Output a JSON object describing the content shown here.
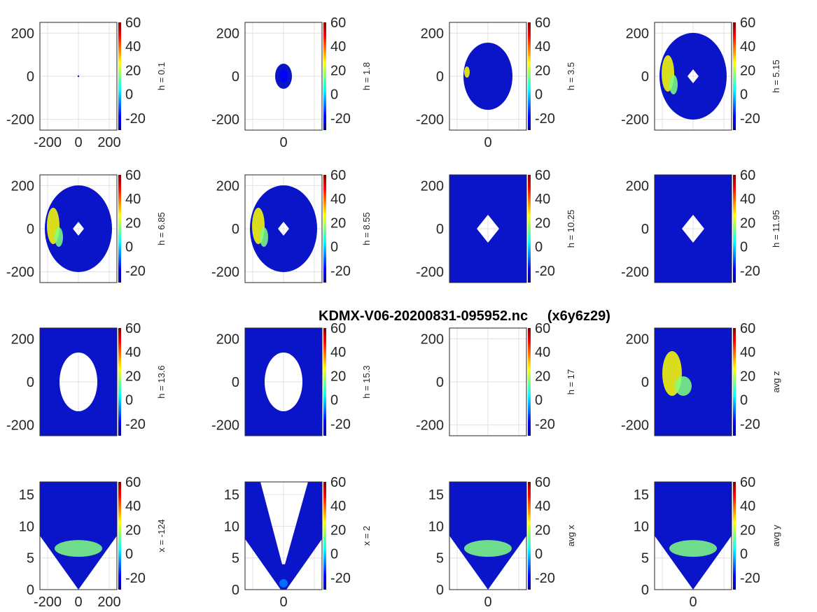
{
  "figure": {
    "title": "KDMX-V06-20200831-095952.nc     (x6y6z29)"
  },
  "colormap": {
    "name": "jet",
    "range": [
      -30,
      60
    ],
    "ticks": [
      "60",
      "40",
      "20",
      "0",
      "-20"
    ],
    "tick_values": [
      60,
      40,
      20,
      0,
      -20
    ],
    "stops": [
      "#00008f",
      "#0000ff",
      "#0080ff",
      "#00ffff",
      "#80ff80",
      "#ffff00",
      "#ff8000",
      "#ff0000",
      "#800000"
    ]
  },
  "chart_data": [
    {
      "type": "heatmap",
      "panel": "h-0.1",
      "label": "h = 0.1",
      "xlim": [
        -250,
        250
      ],
      "ylim": [
        -250,
        250
      ],
      "xticks": [
        "-200",
        "0",
        "200"
      ],
      "yticks": [
        "200",
        "0",
        "-200"
      ],
      "grid": true,
      "shape": "dot",
      "color_scale": [
        -30,
        60
      ]
    },
    {
      "type": "heatmap",
      "panel": "h-1.8",
      "label": "h = 1.8",
      "xlim": [
        -250,
        250
      ],
      "ylim": [
        -250,
        250
      ],
      "xticks": [
        "0"
      ],
      "yticks": [
        "200",
        "0",
        "-200"
      ],
      "grid": true,
      "shape": "small-ellipse",
      "color_scale": [
        -30,
        60
      ]
    },
    {
      "type": "heatmap",
      "panel": "h-3.5",
      "label": "h = 3.5",
      "xlim": [
        -250,
        250
      ],
      "ylim": [
        -250,
        250
      ],
      "xticks": [
        "0"
      ],
      "yticks": [
        "200",
        "0",
        "-200"
      ],
      "grid": true,
      "shape": "ellipse",
      "color_scale": [
        -30,
        60
      ]
    },
    {
      "type": "heatmap",
      "panel": "h-5.15",
      "label": "h = 5.15",
      "xlim": [
        -250,
        250
      ],
      "ylim": [
        -250,
        250
      ],
      "xticks": [],
      "yticks": [
        "200",
        "0",
        "-200"
      ],
      "grid": true,
      "shape": "ellipse-hole",
      "color_scale": [
        -30,
        60
      ]
    },
    {
      "type": "heatmap",
      "panel": "h-6.85",
      "label": "h = 6.85",
      "xlim": [
        -250,
        250
      ],
      "ylim": [
        -250,
        250
      ],
      "xticks": [],
      "yticks": [
        "200",
        "0",
        "-200"
      ],
      "grid": true,
      "shape": "ellipse-hole",
      "color_scale": [
        -30,
        60
      ]
    },
    {
      "type": "heatmap",
      "panel": "h-8.55",
      "label": "h = 8.55",
      "xlim": [
        -250,
        250
      ],
      "ylim": [
        -250,
        250
      ],
      "xticks": [],
      "yticks": [
        "200",
        "0",
        "-200"
      ],
      "grid": true,
      "shape": "ellipse-hole",
      "color_scale": [
        -30,
        60
      ]
    },
    {
      "type": "heatmap",
      "panel": "h-10.25",
      "label": "h = 10.25",
      "xlim": [
        -250,
        250
      ],
      "ylim": [
        -250,
        250
      ],
      "xticks": [],
      "yticks": [
        "200",
        "0",
        "-200"
      ],
      "grid": true,
      "shape": "fill-hole",
      "color_scale": [
        -30,
        60
      ]
    },
    {
      "type": "heatmap",
      "panel": "h-11.95",
      "label": "h = 11.95",
      "xlim": [
        -250,
        250
      ],
      "ylim": [
        -250,
        250
      ],
      "xticks": [],
      "yticks": [
        "200",
        "0",
        "-200"
      ],
      "grid": true,
      "shape": "fill-hole",
      "color_scale": [
        -30,
        60
      ]
    },
    {
      "type": "heatmap",
      "panel": "h-13.6",
      "label": "h = 13.6",
      "xlim": [
        -250,
        250
      ],
      "ylim": [
        -250,
        250
      ],
      "xticks": [],
      "yticks": [
        "200",
        "0",
        "-200"
      ],
      "grid": true,
      "shape": "fill-big-hole",
      "color_scale": [
        -30,
        60
      ]
    },
    {
      "type": "heatmap",
      "panel": "h-15.3",
      "label": "h = 15.3",
      "xlim": [
        -250,
        250
      ],
      "ylim": [
        -250,
        250
      ],
      "xticks": [],
      "yticks": [
        "200",
        "0",
        "-200"
      ],
      "grid": true,
      "shape": "fill-big-hole",
      "color_scale": [
        -30,
        60
      ]
    },
    {
      "type": "heatmap",
      "panel": "h-17",
      "label": "h = 17",
      "xlim": [
        -250,
        250
      ],
      "ylim": [
        -250,
        250
      ],
      "xticks": [],
      "yticks": [
        "200",
        "0",
        "-200"
      ],
      "grid": true,
      "shape": "empty",
      "color_scale": [
        -30,
        60
      ]
    },
    {
      "type": "heatmap",
      "panel": "avg-z",
      "label": "avg z",
      "xlim": [
        -250,
        250
      ],
      "ylim": [
        -250,
        250
      ],
      "xticks": [],
      "yticks": [
        "200",
        "0",
        "-200"
      ],
      "grid": true,
      "shape": "full",
      "color_scale": [
        -30,
        60
      ]
    },
    {
      "type": "heatmap",
      "panel": "x-neg124",
      "label": "x = -124",
      "xlim": [
        -250,
        250
      ],
      "ylim": [
        0,
        17
      ],
      "xticks": [
        "-200",
        "0",
        "200"
      ],
      "yticks": [
        "15",
        "10",
        "5",
        "0"
      ],
      "grid": true,
      "shape": "cone-full",
      "color_scale": [
        -30,
        60
      ]
    },
    {
      "type": "heatmap",
      "panel": "x-2",
      "label": "x = 2",
      "xlim": [
        -250,
        250
      ],
      "ylim": [
        0,
        17
      ],
      "xticks": [
        "0"
      ],
      "yticks": [
        "15",
        "10",
        "5",
        "0"
      ],
      "grid": true,
      "shape": "v-cone",
      "color_scale": [
        -30,
        60
      ]
    },
    {
      "type": "heatmap",
      "panel": "avg-x",
      "label": "avg x",
      "xlim": [
        -250,
        250
      ],
      "ylim": [
        0,
        17
      ],
      "xticks": [
        "0"
      ],
      "yticks": [
        "15",
        "10",
        "5",
        "0"
      ],
      "grid": true,
      "shape": "cone-full",
      "color_scale": [
        -30,
        60
      ]
    },
    {
      "type": "heatmap",
      "panel": "avg-y",
      "label": "avg y",
      "xlim": [
        -250,
        250
      ],
      "ylim": [
        0,
        17
      ],
      "xticks": [
        "0"
      ],
      "yticks": [
        "15",
        "10",
        "5",
        "0"
      ],
      "grid": true,
      "shape": "cone-full",
      "color_scale": [
        -30,
        60
      ]
    }
  ]
}
